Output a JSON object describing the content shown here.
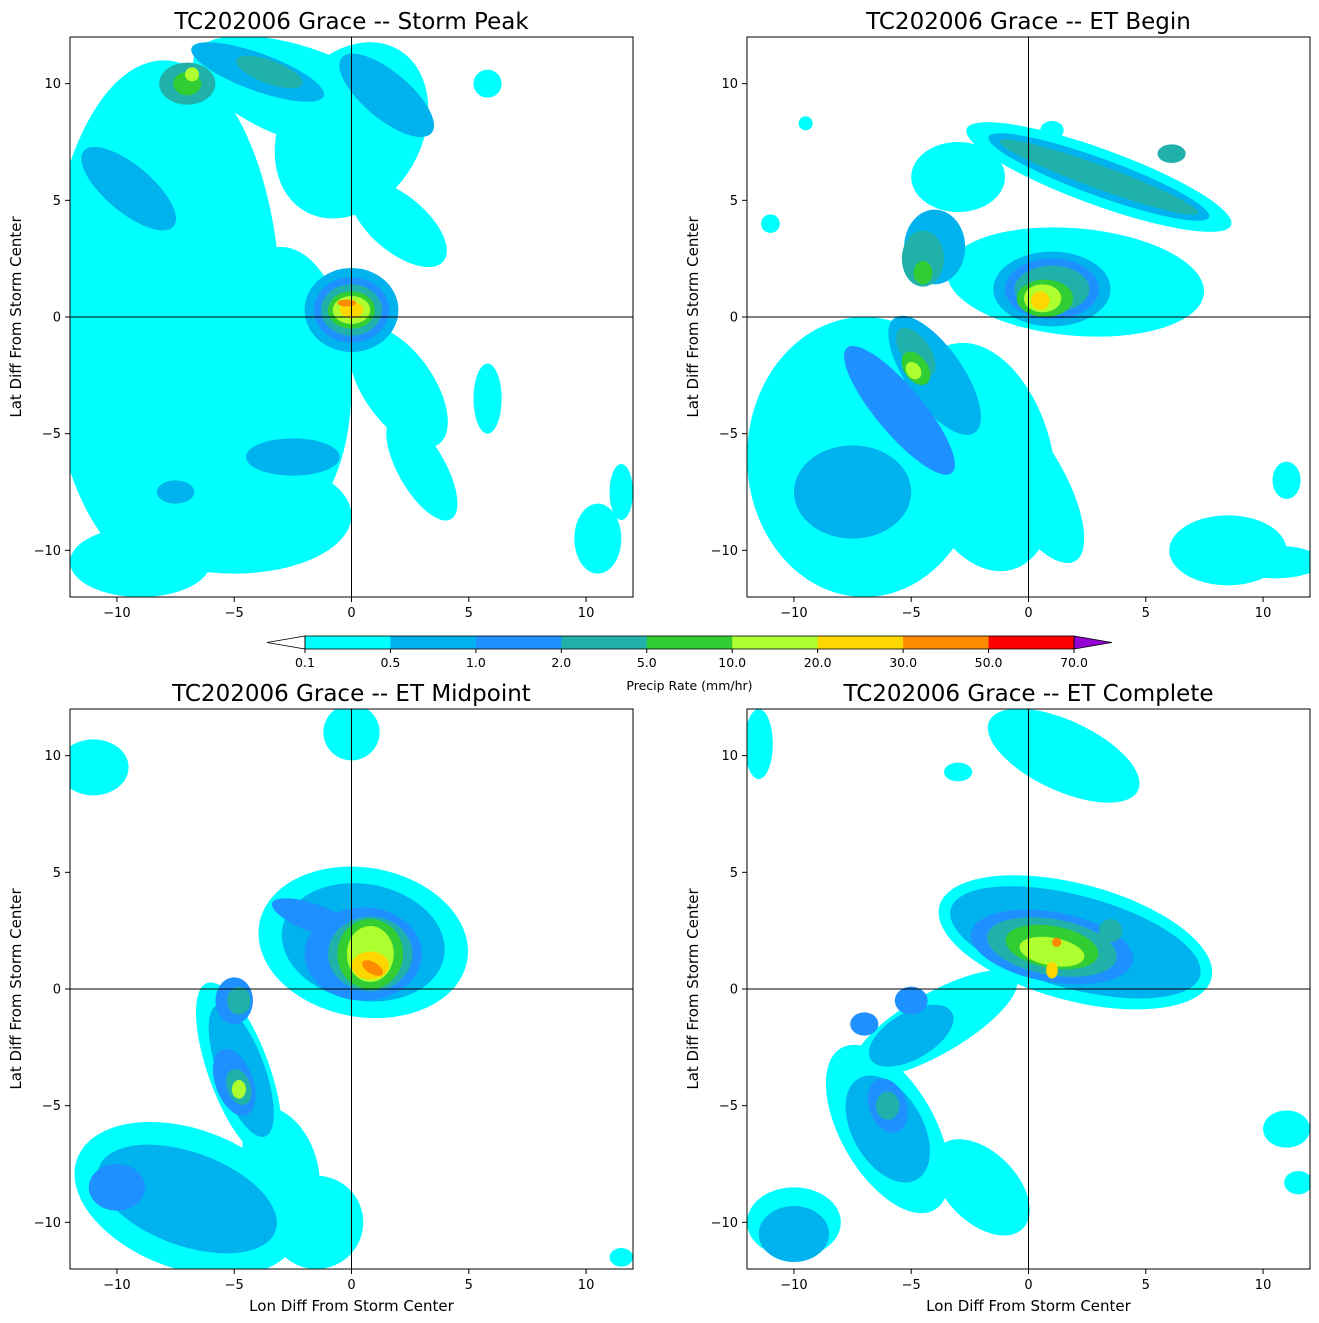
{
  "chart_data": {
    "type": "heatmap",
    "colorbar": {
      "label": "Precip Rate (mm/hr)",
      "levels": [
        "0.1",
        "0.5",
        "1.0",
        "2.0",
        "5.0",
        "10.0",
        "20.0",
        "30.0",
        "50.0",
        "70.0"
      ],
      "colors": [
        "#00ffff",
        "#00b2ee",
        "#1e90ff",
        "#20b2aa",
        "#32cd32",
        "#adff2f",
        "#ffd700",
        "#ff8c00",
        "#ff0000",
        "#9400d3"
      ],
      "extend": "both"
    },
    "panels": [
      {
        "title": "TC202006 Grace -- Storm Peak",
        "xlabel": "",
        "ylabel": "Lat Diff From Storm Center",
        "xlim": [
          -12,
          12
        ],
        "ylim": [
          -12,
          12
        ],
        "xticks": [
          "−10",
          "−5",
          "0",
          "5",
          "10"
        ],
        "yticks": [
          "−10",
          "−5",
          "0",
          "5",
          "10"
        ],
        "features": [
          {
            "x": -8,
            "y": 0,
            "rx": 5,
            "ry": 11,
            "rot": 0,
            "level": 0
          },
          {
            "x": -3,
            "y": -3,
            "rx": 3,
            "ry": 6,
            "rot": 0,
            "level": 0
          },
          {
            "x": 0,
            "y": 8,
            "rx": 3,
            "ry": 4,
            "rot": -30,
            "level": 0
          },
          {
            "x": -2,
            "y": 9.5,
            "rx": 5,
            "ry": 2,
            "rot": -20,
            "level": 0
          },
          {
            "x": 2,
            "y": 4,
            "rx": 2.5,
            "ry": 1.2,
            "rot": -40,
            "level": 0
          },
          {
            "x": 2,
            "y": -3,
            "rx": 1.5,
            "ry": 3,
            "rot": 35,
            "level": 0
          },
          {
            "x": 3,
            "y": -6.5,
            "rx": 1,
            "ry": 2.5,
            "rot": 30,
            "level": 0
          },
          {
            "x": -5,
            "y": -8.5,
            "rx": 5,
            "ry": 2.5,
            "rot": 0,
            "level": 0
          },
          {
            "x": -9,
            "y": -10.5,
            "rx": 3,
            "ry": 1.5,
            "rot": 0,
            "level": 0
          },
          {
            "x": 5.8,
            "y": -3.5,
            "rx": 0.6,
            "ry": 1.5,
            "rot": 0,
            "level": 0
          },
          {
            "x": 10.5,
            "y": -9.5,
            "rx": 1,
            "ry": 1.5,
            "rot": 0,
            "level": 0
          },
          {
            "x": 11.5,
            "y": -7.5,
            "rx": 0.5,
            "ry": 1.2,
            "rot": 0,
            "level": 0
          },
          {
            "x": 5.8,
            "y": 10,
            "rx": 0.6,
            "ry": 0.6,
            "rot": 0,
            "level": 0
          },
          {
            "x": -9.5,
            "y": 5.5,
            "rx": 2.5,
            "ry": 1,
            "rot": -40,
            "level": 1
          },
          {
            "x": -4,
            "y": 10.5,
            "rx": 3,
            "ry": 0.8,
            "rot": -20,
            "level": 1
          },
          {
            "x": 1.5,
            "y": 9.5,
            "rx": 2.5,
            "ry": 1,
            "rot": -40,
            "level": 1
          },
          {
            "x": -2.5,
            "y": -6,
            "rx": 2,
            "ry": 0.8,
            "rot": 0,
            "level": 1
          },
          {
            "x": -7.5,
            "y": -7.5,
            "rx": 0.8,
            "ry": 0.5,
            "rot": 0,
            "level": 1
          },
          {
            "x": 0,
            "y": 0.3,
            "rx": 2,
            "ry": 1.8,
            "rot": 0,
            "level": 1
          },
          {
            "x": 0,
            "y": 0.3,
            "rx": 1.6,
            "ry": 1.4,
            "rot": 0,
            "level": 2
          },
          {
            "x": -7,
            "y": 10,
            "rx": 1.2,
            "ry": 0.9,
            "rot": 0,
            "level": 3
          },
          {
            "x": -3.5,
            "y": 10.5,
            "rx": 1.5,
            "ry": 0.5,
            "rot": -20,
            "level": 3
          },
          {
            "x": 0,
            "y": 0.3,
            "rx": 1.3,
            "ry": 1.1,
            "rot": 0,
            "level": 3
          },
          {
            "x": -7,
            "y": 10,
            "rx": 0.6,
            "ry": 0.5,
            "rot": 0,
            "level": 4
          },
          {
            "x": 0,
            "y": 0.3,
            "rx": 1.0,
            "ry": 0.8,
            "rot": 0,
            "level": 4
          },
          {
            "x": -6.8,
            "y": 10.4,
            "rx": 0.3,
            "ry": 0.3,
            "rot": 0,
            "level": 5
          },
          {
            "x": 0,
            "y": 0.3,
            "rx": 0.8,
            "ry": 0.6,
            "rot": 0,
            "level": 5
          },
          {
            "x": 0,
            "y": 0.3,
            "rx": 0.5,
            "ry": 0.35,
            "rot": 0,
            "level": 6
          },
          {
            "x": -0.2,
            "y": 0.6,
            "rx": 0.4,
            "ry": 0.15,
            "rot": 0,
            "level": 7
          }
        ]
      },
      {
        "title": "TC202006 Grace -- ET Begin",
        "xlabel": "",
        "ylabel": "Lat Diff From Storm Center",
        "xlim": [
          -12,
          12
        ],
        "ylim": [
          -12,
          12
        ],
        "xticks": [
          "−10",
          "−5",
          "0",
          "5",
          "10"
        ],
        "yticks": [
          "−10",
          "−5",
          "0",
          "5",
          "10"
        ],
        "features": [
          {
            "x": -3,
            "y": 6,
            "rx": 2,
            "ry": 1.5,
            "rot": 0,
            "level": 0
          },
          {
            "x": 2,
            "y": 1.5,
            "rx": 5.5,
            "ry": 2.3,
            "rot": -5,
            "level": 0
          },
          {
            "x": 3,
            "y": 6,
            "rx": 6,
            "ry": 1.2,
            "rot": -20,
            "level": 0
          },
          {
            "x": -7,
            "y": -6,
            "rx": 5,
            "ry": 6,
            "rot": 0,
            "level": 0
          },
          {
            "x": -2,
            "y": -6,
            "rx": 3,
            "ry": 5,
            "rot": 15,
            "level": 0
          },
          {
            "x": 0,
            "y": -7,
            "rx": 1.5,
            "ry": 4,
            "rot": 30,
            "level": 0
          },
          {
            "x": 8.5,
            "y": -10,
            "rx": 2.5,
            "ry": 1.5,
            "rot": 0,
            "level": 0
          },
          {
            "x": 10.5,
            "y": -10.5,
            "rx": 2,
            "ry": 0.7,
            "rot": 0,
            "level": 0
          },
          {
            "x": 11,
            "y": -7,
            "rx": 0.6,
            "ry": 0.8,
            "rot": 0,
            "level": 0
          },
          {
            "x": 1,
            "y": 8,
            "rx": 0.5,
            "ry": 0.4,
            "rot": 0,
            "level": 0
          },
          {
            "x": -9.5,
            "y": 8.3,
            "rx": 0.3,
            "ry": 0.3,
            "rot": 0,
            "level": 0
          },
          {
            "x": -11,
            "y": 4,
            "rx": 0.4,
            "ry": 0.4,
            "rot": 0,
            "level": 0
          },
          {
            "x": -4,
            "y": -2.5,
            "rx": 1.2,
            "ry": 3,
            "rot": 35,
            "level": 1
          },
          {
            "x": -7.5,
            "y": -7.5,
            "rx": 2.5,
            "ry": 2,
            "rot": 0,
            "level": 1
          },
          {
            "x": 3,
            "y": 6,
            "rx": 5,
            "ry": 0.8,
            "rot": -20,
            "level": 1
          },
          {
            "x": -4,
            "y": 3,
            "rx": 1.3,
            "ry": 1.6,
            "rot": 0,
            "level": 1
          },
          {
            "x": 1,
            "y": 1.2,
            "rx": 2.5,
            "ry": 1.6,
            "rot": 0,
            "level": 1
          },
          {
            "x": -5.5,
            "y": -4,
            "rx": 1,
            "ry": 3.5,
            "rot": 40,
            "level": 2
          },
          {
            "x": 1,
            "y": 1.2,
            "rx": 2,
            "ry": 1.3,
            "rot": 0,
            "level": 2
          },
          {
            "x": 3,
            "y": 6,
            "rx": 4.5,
            "ry": 0.5,
            "rot": -20,
            "level": 3
          },
          {
            "x": -4.5,
            "y": 2.5,
            "rx": 0.9,
            "ry": 1.2,
            "rot": 0,
            "level": 3
          },
          {
            "x": -4.8,
            "y": -1.5,
            "rx": 0.6,
            "ry": 1.2,
            "rot": 35,
            "level": 3
          },
          {
            "x": 1,
            "y": 1.2,
            "rx": 1.6,
            "ry": 1.0,
            "rot": 0,
            "level": 3
          },
          {
            "x": 6.1,
            "y": 7.0,
            "rx": 0.6,
            "ry": 0.4,
            "rot": 0,
            "level": 3
          },
          {
            "x": -4.8,
            "y": -2.2,
            "rx": 0.5,
            "ry": 0.8,
            "rot": 35,
            "level": 4
          },
          {
            "x": 0.7,
            "y": 0.8,
            "rx": 1.2,
            "ry": 0.8,
            "rot": 0,
            "level": 4
          },
          {
            "x": -4.5,
            "y": 1.9,
            "rx": 0.4,
            "ry": 0.5,
            "rot": 0,
            "level": 4
          },
          {
            "x": 0.6,
            "y": 0.8,
            "rx": 0.8,
            "ry": 0.6,
            "rot": 0,
            "level": 5
          },
          {
            "x": -4.9,
            "y": -2.3,
            "rx": 0.3,
            "ry": 0.4,
            "rot": 35,
            "level": 5
          },
          {
            "x": 0.5,
            "y": 0.7,
            "rx": 0.4,
            "ry": 0.4,
            "rot": 0,
            "level": 6
          }
        ]
      },
      {
        "title": "TC202006 Grace -- ET Midpoint",
        "xlabel": "Lon Diff From Storm Center",
        "ylabel": "Lat Diff From Storm Center",
        "xlim": [
          -12,
          12
        ],
        "ylim": [
          -12,
          12
        ],
        "xticks": [
          "−10",
          "−5",
          "0",
          "5",
          "10"
        ],
        "yticks": [
          "−10",
          "−5",
          "0",
          "5",
          "10"
        ],
        "features": [
          {
            "x": -11,
            "y": 9.5,
            "rx": 1.5,
            "ry": 1.2,
            "rot": 0,
            "level": 0
          },
          {
            "x": 0,
            "y": 11,
            "rx": 1.2,
            "ry": 1.2,
            "rot": 0,
            "level": 0
          },
          {
            "x": 0.5,
            "y": 2,
            "rx": 4.5,
            "ry": 3.2,
            "rot": -10,
            "level": 0
          },
          {
            "x": -4.8,
            "y": -3.5,
            "rx": 1.3,
            "ry": 4,
            "rot": 20,
            "level": 0
          },
          {
            "x": -7,
            "y": -9,
            "rx": 5,
            "ry": 3,
            "rot": -20,
            "level": 0
          },
          {
            "x": -3,
            "y": -7.5,
            "rx": 1.5,
            "ry": 2.5,
            "rot": 20,
            "level": 0
          },
          {
            "x": -1.5,
            "y": -10,
            "rx": 2,
            "ry": 2,
            "rot": 0,
            "level": 0
          },
          {
            "x": 11.5,
            "y": -11.5,
            "rx": 0.5,
            "ry": 0.4,
            "rot": 0,
            "level": 0
          },
          {
            "x": 0.5,
            "y": 2,
            "rx": 3.5,
            "ry": 2.5,
            "rot": -10,
            "level": 1
          },
          {
            "x": -4.7,
            "y": -3.5,
            "rx": 1.0,
            "ry": 3,
            "rot": 20,
            "level": 1
          },
          {
            "x": -7,
            "y": -9,
            "rx": 4,
            "ry": 2,
            "rot": -20,
            "level": 1
          },
          {
            "x": 0.5,
            "y": 1.5,
            "rx": 2.5,
            "ry": 2,
            "rot": 0,
            "level": 2
          },
          {
            "x": -1.5,
            "y": 3,
            "rx": 2,
            "ry": 0.6,
            "rot": -20,
            "level": 2
          },
          {
            "x": -5,
            "y": -0.5,
            "rx": 0.8,
            "ry": 1.0,
            "rot": 0,
            "level": 2
          },
          {
            "x": -5,
            "y": -4,
            "rx": 0.8,
            "ry": 1.5,
            "rot": 20,
            "level": 2
          },
          {
            "x": -10,
            "y": -8.5,
            "rx": 1.2,
            "ry": 1,
            "rot": 0,
            "level": 2
          },
          {
            "x": 0.8,
            "y": 1.5,
            "rx": 1.8,
            "ry": 1.6,
            "rot": 0,
            "level": 3
          },
          {
            "x": -4.8,
            "y": -0.5,
            "rx": 0.5,
            "ry": 0.6,
            "rot": 0,
            "level": 3
          },
          {
            "x": -4.8,
            "y": -4.2,
            "rx": 0.5,
            "ry": 0.8,
            "rot": 20,
            "level": 3
          },
          {
            "x": 0.8,
            "y": 1.5,
            "rx": 1.4,
            "ry": 1.5,
            "rot": 0,
            "level": 4
          },
          {
            "x": -4.8,
            "y": -4.3,
            "rx": 0.3,
            "ry": 0.4,
            "rot": 0,
            "level": 5
          },
          {
            "x": 0.8,
            "y": 1.5,
            "rx": 1.0,
            "ry": 1.2,
            "rot": 0,
            "level": 5
          },
          {
            "x": 0.8,
            "y": 1.0,
            "rx": 0.8,
            "ry": 0.6,
            "rot": 0,
            "level": 6
          },
          {
            "x": 0.9,
            "y": 0.9,
            "rx": 0.5,
            "ry": 0.25,
            "rot": -30,
            "level": 7
          }
        ]
      },
      {
        "title": "TC202006 Grace -- ET Complete",
        "xlabel": "Lon Diff From Storm Center",
        "ylabel": "Lat Diff From Storm Center",
        "xlim": [
          -12,
          12
        ],
        "ylim": [
          -12,
          12
        ],
        "xticks": [
          "−10",
          "−5",
          "0",
          "5",
          "10"
        ],
        "yticks": [
          "−10",
          "−5",
          "0",
          "5",
          "10"
        ],
        "features": [
          {
            "x": -11.5,
            "y": 10.5,
            "rx": 0.6,
            "ry": 1.5,
            "rot": 0,
            "level": 0
          },
          {
            "x": 1.5,
            "y": 10,
            "rx": 3.5,
            "ry": 1.5,
            "rot": -25,
            "level": 0
          },
          {
            "x": -3,
            "y": 9.3,
            "rx": 0.6,
            "ry": 0.4,
            "rot": 0,
            "level": 0
          },
          {
            "x": 2,
            "y": 2,
            "rx": 6,
            "ry": 2.5,
            "rot": -15,
            "level": 0
          },
          {
            "x": -4,
            "y": -1.5,
            "rx": 4,
            "ry": 1.3,
            "rot": 30,
            "level": 0
          },
          {
            "x": -6,
            "y": -6,
            "rx": 2,
            "ry": 4,
            "rot": 30,
            "level": 0
          },
          {
            "x": -10,
            "y": -10,
            "rx": 2,
            "ry": 1.5,
            "rot": 0,
            "level": 0
          },
          {
            "x": -2,
            "y": -8.5,
            "rx": 1.5,
            "ry": 2.5,
            "rot": 45,
            "level": 0
          },
          {
            "x": 11,
            "y": -6,
            "rx": 1,
            "ry": 0.8,
            "rot": 0,
            "level": 0
          },
          {
            "x": 11.5,
            "y": -8.3,
            "rx": 0.6,
            "ry": 0.5,
            "rot": 0,
            "level": 0
          },
          {
            "x": 2,
            "y": 2,
            "rx": 5.5,
            "ry": 2,
            "rot": -15,
            "level": 1
          },
          {
            "x": -5,
            "y": -2,
            "rx": 2,
            "ry": 1,
            "rot": 30,
            "level": 1
          },
          {
            "x": -6,
            "y": -6,
            "rx": 1.5,
            "ry": 2.5,
            "rot": 30,
            "level": 1
          },
          {
            "x": -10,
            "y": -10.5,
            "rx": 1.5,
            "ry": 1.2,
            "rot": 0,
            "level": 1
          },
          {
            "x": 1,
            "y": 1.8,
            "rx": 3.5,
            "ry": 1.5,
            "rot": -10,
            "level": 2
          },
          {
            "x": -6,
            "y": -5,
            "rx": 0.8,
            "ry": 1.2,
            "rot": 20,
            "level": 2
          },
          {
            "x": -5,
            "y": -0.5,
            "rx": 0.7,
            "ry": 0.6,
            "rot": 0,
            "level": 2
          },
          {
            "x": -7,
            "y": -1.5,
            "rx": 0.6,
            "ry": 0.5,
            "rot": 0,
            "level": 2
          },
          {
            "x": 1,
            "y": 1.8,
            "rx": 2.8,
            "ry": 1.2,
            "rot": -10,
            "level": 3
          },
          {
            "x": -6,
            "y": -5,
            "rx": 0.5,
            "ry": 0.6,
            "rot": 0,
            "level": 3
          },
          {
            "x": 3.5,
            "y": 2.5,
            "rx": 0.5,
            "ry": 0.5,
            "rot": 0,
            "level": 3
          },
          {
            "x": 1,
            "y": 1.8,
            "rx": 2.0,
            "ry": 0.9,
            "rot": -10,
            "level": 4
          },
          {
            "x": 1,
            "y": 1.6,
            "rx": 1.4,
            "ry": 0.6,
            "rot": -10,
            "level": 5
          },
          {
            "x": 1,
            "y": 0.8,
            "rx": 0.25,
            "ry": 0.35,
            "rot": 0,
            "level": 6
          },
          {
            "x": 1.2,
            "y": 2.0,
            "rx": 0.2,
            "ry": 0.2,
            "rot": 0,
            "level": 7
          }
        ]
      }
    ]
  }
}
